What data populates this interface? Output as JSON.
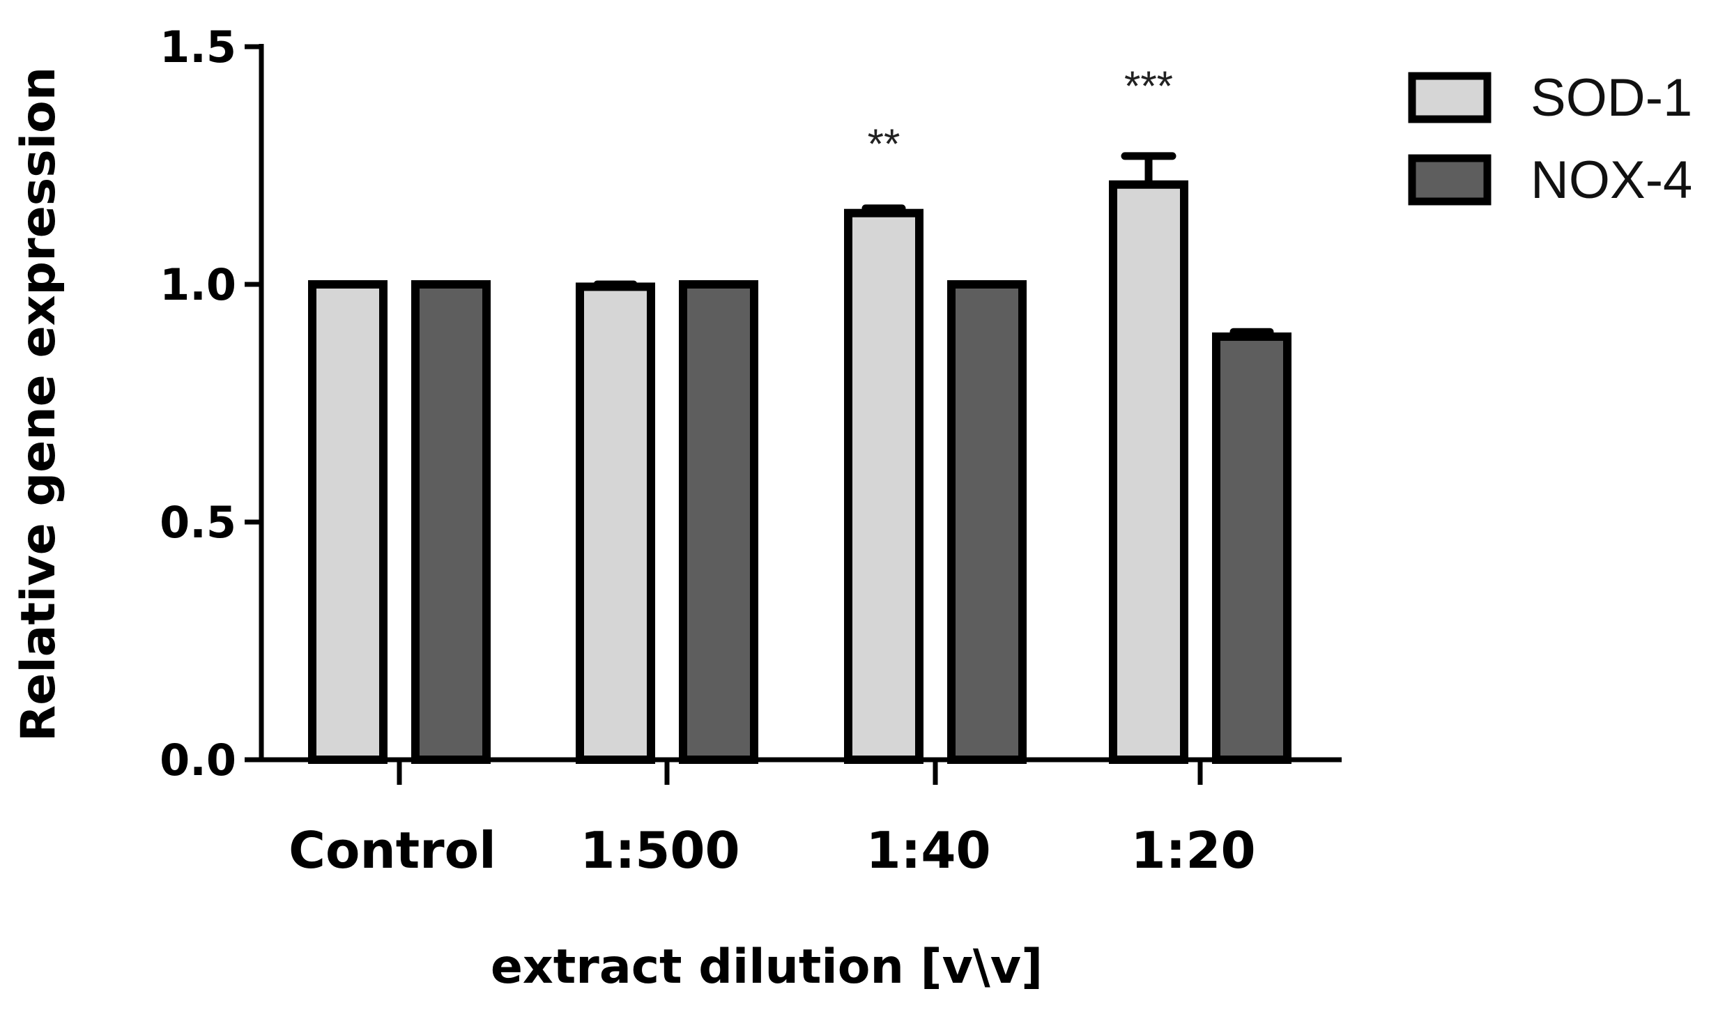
{
  "chart_data": {
    "type": "bar",
    "title": "",
    "xlabel": "extract dilution [v\\v]",
    "ylabel": "Relative gene expression",
    "ylim": [
      0,
      1.5
    ],
    "yticks": [
      0.0,
      0.5,
      1.0,
      1.5
    ],
    "ytick_labels": [
      "0.0",
      "0.5",
      "1.0",
      "1.5"
    ],
    "categories": [
      "Control",
      "1:500",
      "1:40",
      "1:20"
    ],
    "series": [
      {
        "name": "SOD-1",
        "color": "#d6d6d6",
        "values": [
          1.0,
          0.995,
          1.15,
          1.21
        ],
        "errors": [
          0.0,
          0.005,
          0.01,
          0.06
        ]
      },
      {
        "name": "NOX-4",
        "color": "#5e5e5e",
        "values": [
          1.0,
          1.0,
          1.0,
          0.89
        ],
        "errors": [
          0.0,
          0.0,
          0.0,
          0.01
        ]
      }
    ],
    "annotations": [
      {
        "category": "1:40",
        "text": "**"
      },
      {
        "category": "1:20",
        "text": "***"
      }
    ],
    "legend": {
      "position": "top-right",
      "entries": [
        "SOD-1",
        "NOX-4"
      ]
    },
    "grid": false
  }
}
